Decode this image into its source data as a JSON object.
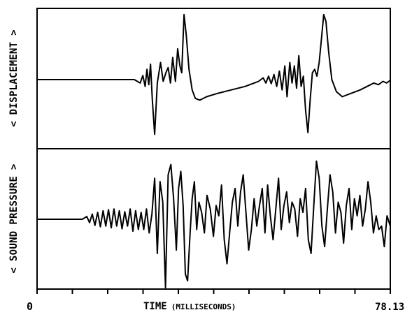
{
  "chart_data": {
    "type": "line",
    "x_axis": {
      "label_main": "TIME",
      "label_units": "(MILLISECONDS)",
      "start_label": "0",
      "end_label": "78.13",
      "range": [
        0,
        78.13
      ],
      "minor_ticks": 10
    },
    "panels": [
      {
        "ylabel": "< DISPLACEMENT >",
        "grid": false,
        "series": [
          {
            "x": [
              0,
              21.5,
              22.8,
              23.4,
              23.9,
              24.3,
              24.7,
              25.1,
              25.5,
              26.0,
              26.6,
              27.3,
              27.9,
              28.5,
              29.0,
              29.5,
              30.0,
              30.6,
              31.1,
              31.6,
              32.0,
              32.5,
              33.0,
              33.6,
              34.3,
              35.0,
              36.0,
              37.5,
              40.0,
              43.0,
              46.0,
              48.0,
              49.0,
              50.0,
              50.6,
              51.2,
              51.8,
              52.4,
              53.0,
              53.6,
              54.2,
              54.8,
              55.3,
              55.9,
              56.4,
              56.9,
              57.4,
              57.9,
              58.4,
              58.9,
              59.4,
              59.9,
              60.4,
              60.9,
              61.4,
              61.9,
              62.4,
              62.9,
              63.4,
              63.9,
              64.5,
              65.2,
              66.2,
              67.5,
              69.5,
              71.5,
              73.0,
              74.5,
              75.5,
              76.5,
              77.3,
              78.13
            ],
            "y": [
              0,
              0,
              -0.1,
              0.12,
              -0.2,
              0.3,
              -0.15,
              0.45,
              -0.6,
              -1.6,
              -0.1,
              0.5,
              -0.05,
              0.2,
              0.35,
              -0.1,
              0.65,
              -0.05,
              0.9,
              0.4,
              0.2,
              1.9,
              1.3,
              0.3,
              -0.3,
              -0.55,
              -0.6,
              -0.5,
              -0.4,
              -0.3,
              -0.2,
              -0.1,
              -0.05,
              0.05,
              -0.1,
              0.1,
              -0.12,
              0.15,
              -0.2,
              0.25,
              -0.3,
              0.4,
              -0.5,
              0.5,
              -0.1,
              0.4,
              -0.25,
              0.7,
              -0.2,
              0.1,
              -0.9,
              -1.55,
              -0.6,
              0.2,
              0.3,
              0.1,
              0.5,
              1.2,
              1.9,
              1.7,
              0.8,
              0,
              -0.35,
              -0.5,
              -0.4,
              -0.3,
              -0.2,
              -0.1,
              -0.15,
              -0.05,
              -0.1,
              -0.02
            ]
          }
        ]
      },
      {
        "ylabel": "< SOUND PRESSURE >",
        "grid": false,
        "series": [
          {
            "x": [
              0,
              10.0,
              11.0,
              11.6,
              12.2,
              12.8,
              13.4,
              14.0,
              14.6,
              15.2,
              15.8,
              16.4,
              17.0,
              17.6,
              18.2,
              18.8,
              19.4,
              20.0,
              20.6,
              21.2,
              21.8,
              22.4,
              23.0,
              23.6,
              24.2,
              24.8,
              25.4,
              26.0,
              26.6,
              27.2,
              27.8,
              28.4,
              29.0,
              29.6,
              30.2,
              30.8,
              31.3,
              31.8,
              32.3,
              32.8,
              33.3,
              33.8,
              34.3,
              34.8,
              35.3,
              35.8,
              36.4,
              37.0,
              37.6,
              38.3,
              39.0,
              39.6,
              40.2,
              40.8,
              41.4,
              42.0,
              42.6,
              43.2,
              43.8,
              44.4,
              45.0,
              45.6,
              46.2,
              46.8,
              47.4,
              48.0,
              48.6,
              49.2,
              49.8,
              50.4,
              51.0,
              51.6,
              52.2,
              52.8,
              53.4,
              54.0,
              54.6,
              55.2,
              55.8,
              56.4,
              57.0,
              57.6,
              58.2,
              58.8,
              59.4,
              60.0,
              60.6,
              61.2,
              61.8,
              62.4,
              63.0,
              63.6,
              64.2,
              64.8,
              65.4,
              66.0,
              66.6,
              67.2,
              67.8,
              68.4,
              69.0,
              69.6,
              70.2,
              70.8,
              71.4,
              72.0,
              72.6,
              73.2,
              73.8,
              74.4,
              75.0,
              75.6,
              76.2,
              76.8,
              77.4,
              78.13
            ],
            "y": [
              0,
              0,
              0.08,
              -0.1,
              0.15,
              -0.18,
              0.2,
              -0.22,
              0.25,
              -0.2,
              0.28,
              -0.25,
              0.3,
              -0.2,
              0.25,
              -0.28,
              0.22,
              -0.2,
              0.3,
              -0.35,
              0.25,
              -0.3,
              0.2,
              -0.3,
              0.3,
              -0.4,
              0.15,
              1.2,
              -1.0,
              1.1,
              0.5,
              -2.0,
              1.3,
              1.6,
              0.6,
              -0.9,
              0.9,
              1.4,
              0.4,
              -1.6,
              -1.8,
              -0.5,
              0.6,
              1.1,
              -0.3,
              0.5,
              0.2,
              -0.4,
              0.7,
              0.3,
              -0.5,
              0.4,
              0.1,
              1.0,
              -0.6,
              -1.3,
              -0.4,
              0.5,
              0.9,
              -0.2,
              0.8,
              1.3,
              0.2,
              -0.9,
              -0.3,
              0.6,
              -0.2,
              0.4,
              0.9,
              -0.4,
              1.0,
              0.1,
              -0.6,
              0.3,
              1.2,
              -0.3,
              0.4,
              0.8,
              -0.1,
              0.5,
              0.3,
              -0.5,
              0.6,
              0.2,
              0.9,
              -0.6,
              -1.0,
              0.4,
              1.7,
              1.2,
              -0.2,
              -0.8,
              0.3,
              1.3,
              0.8,
              -0.4,
              0.5,
              0.2,
              -0.7,
              0.4,
              0.9,
              -0.3,
              0.6,
              0.1,
              0.7,
              -0.2,
              0.3,
              1.1,
              0.5,
              -0.4,
              0.1,
              -0.3,
              -0.2,
              -0.8,
              0.1,
              -0.2
            ]
          }
        ]
      }
    ]
  }
}
